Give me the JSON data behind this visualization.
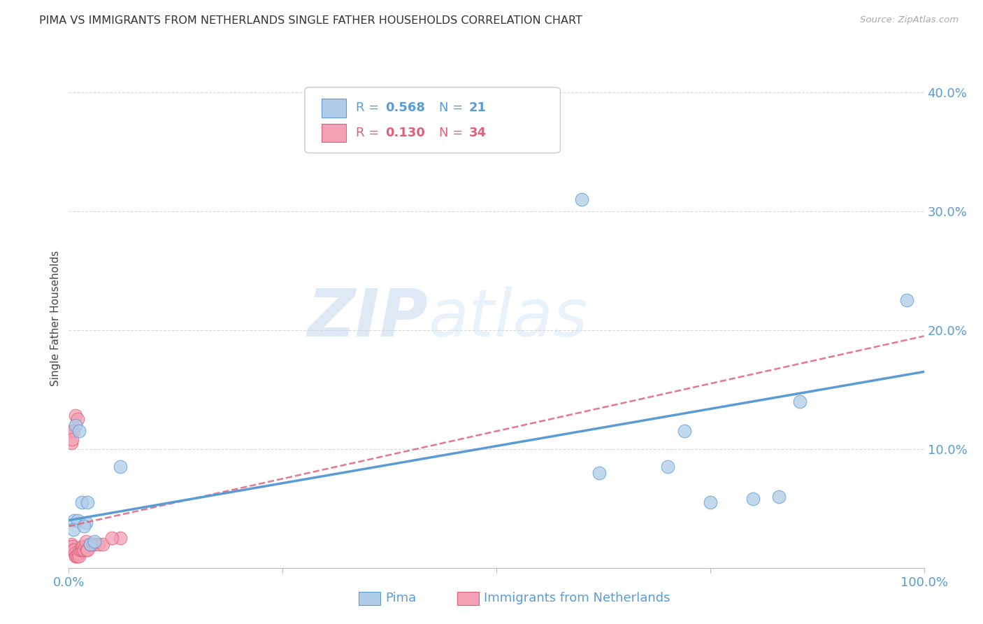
{
  "title": "PIMA VS IMMIGRANTS FROM NETHERLANDS SINGLE FATHER HOUSEHOLDS CORRELATION CHART",
  "source": "Source: ZipAtlas.com",
  "ylabel": "Single Father Households",
  "xlim": [
    0.0,
    1.0
  ],
  "ylim": [
    0.0,
    0.42
  ],
  "yticks": [
    0.0,
    0.1,
    0.2,
    0.3,
    0.4
  ],
  "xticks": [
    0.0,
    0.25,
    0.5,
    0.75,
    1.0
  ],
  "xtick_labels": [
    "0.0%",
    "",
    "",
    "",
    "100.0%"
  ],
  "ytick_labels": [
    "",
    "10.0%",
    "20.0%",
    "30.0%",
    "40.0%"
  ],
  "background_color": "#ffffff",
  "grid_color": "#d8d8d8",
  "title_color": "#333333",
  "axis_color": "#5b9bd5",
  "watermark_line1": "ZIP",
  "watermark_line2": "atlas",
  "pima_points": [
    [
      0.006,
      0.04
    ],
    [
      0.01,
      0.04
    ],
    [
      0.015,
      0.055
    ],
    [
      0.02,
      0.038
    ],
    [
      0.025,
      0.02
    ],
    [
      0.03,
      0.022
    ],
    [
      0.06,
      0.085
    ],
    [
      0.62,
      0.08
    ],
    [
      0.7,
      0.085
    ],
    [
      0.72,
      0.115
    ],
    [
      0.75,
      0.055
    ],
    [
      0.8,
      0.058
    ],
    [
      0.83,
      0.06
    ],
    [
      0.855,
      0.14
    ],
    [
      0.98,
      0.225
    ],
    [
      0.6,
      0.31
    ],
    [
      0.008,
      0.12
    ],
    [
      0.012,
      0.115
    ],
    [
      0.005,
      0.032
    ],
    [
      0.018,
      0.035
    ],
    [
      0.022,
      0.055
    ]
  ],
  "pima_color": "#aecce8",
  "pima_edge_color": "#5b9bd5",
  "pima_R": 0.568,
  "pima_N": 21,
  "pima_line_x": [
    0.0,
    1.0
  ],
  "pima_line_y": [
    0.04,
    0.165
  ],
  "nl_points": [
    [
      0.002,
      0.018
    ],
    [
      0.003,
      0.02
    ],
    [
      0.004,
      0.018
    ],
    [
      0.005,
      0.015
    ],
    [
      0.006,
      0.015
    ],
    [
      0.007,
      0.012
    ],
    [
      0.008,
      0.01
    ],
    [
      0.009,
      0.01
    ],
    [
      0.01,
      0.01
    ],
    [
      0.011,
      0.012
    ],
    [
      0.012,
      0.01
    ],
    [
      0.013,
      0.015
    ],
    [
      0.014,
      0.015
    ],
    [
      0.015,
      0.018
    ],
    [
      0.016,
      0.015
    ],
    [
      0.017,
      0.018
    ],
    [
      0.018,
      0.015
    ],
    [
      0.019,
      0.018
    ],
    [
      0.02,
      0.022
    ],
    [
      0.021,
      0.015
    ],
    [
      0.022,
      0.015
    ],
    [
      0.025,
      0.02
    ],
    [
      0.028,
      0.02
    ],
    [
      0.03,
      0.02
    ],
    [
      0.035,
      0.02
    ],
    [
      0.04,
      0.02
    ],
    [
      0.003,
      0.115
    ],
    [
      0.005,
      0.115
    ],
    [
      0.008,
      0.128
    ],
    [
      0.01,
      0.125
    ],
    [
      0.003,
      0.105
    ],
    [
      0.004,
      0.108
    ],
    [
      0.06,
      0.025
    ],
    [
      0.05,
      0.025
    ]
  ],
  "nl_color": "#f4a0b5",
  "nl_edge_color": "#e0607a",
  "nl_R": 0.13,
  "nl_N": 34,
  "nl_line_x": [
    0.0,
    1.0
  ],
  "nl_line_y": [
    0.035,
    0.195
  ]
}
